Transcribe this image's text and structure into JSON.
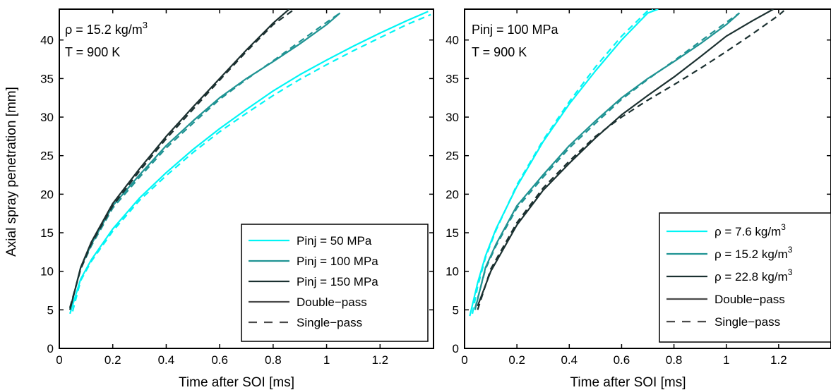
{
  "chart_data": [
    {
      "type": "line",
      "title": "",
      "xlabel": "Time after SOI [ms]",
      "ylabel": "Axial spray penetration [mm]",
      "xlim": [
        0,
        1.4
      ],
      "ylim": [
        0,
        44
      ],
      "xticks": [
        0,
        0.2,
        0.4,
        0.6,
        0.8,
        1,
        1.2
      ],
      "xtick_labels": [
        "0",
        "0.2",
        "0.4",
        "0.6",
        "0.8",
        "1",
        "1.2"
      ],
      "yticks": [
        0,
        5,
        10,
        15,
        20,
        25,
        30,
        35,
        40
      ],
      "ytick_labels": [
        "0",
        "5",
        "10",
        "15",
        "20",
        "25",
        "30",
        "35",
        "40"
      ],
      "annotation": [
        "ρ = 15.2 kg/m",
        "3",
        "T = 900 K"
      ],
      "legend_position": "bottom-right",
      "legend": [
        {
          "label": "Pinj = 50 MPa",
          "sup": "",
          "color": "#00f5f5",
          "dash": false
        },
        {
          "label": "Pinj = 100 MPa",
          "sup": "",
          "color": "#1f9393",
          "dash": false
        },
        {
          "label": "Pinj = 150 MPa",
          "sup": "",
          "color": "#1b3030",
          "dash": false
        },
        {
          "label": "Double−pass",
          "sup": "",
          "color": "#4a4a4a",
          "dash": false
        },
        {
          "label": "Single−pass",
          "sup": "",
          "color": "#4a4a4a",
          "dash": true
        }
      ],
      "series": [
        {
          "group": "Pinj = 50 MPa",
          "method": "Double-pass",
          "color": "#00f5f5",
          "dash": false,
          "x": [
            0.04,
            0.08,
            0.12,
            0.2,
            0.3,
            0.4,
            0.5,
            0.6,
            0.7,
            0.8,
            0.9,
            1.0,
            1.1,
            1.2,
            1.3,
            1.38
          ],
          "y": [
            4.5,
            9.0,
            11.5,
            15.5,
            19.5,
            22.8,
            25.8,
            28.5,
            31.0,
            33.4,
            35.5,
            37.4,
            39.2,
            40.9,
            42.5,
            43.7
          ]
        },
        {
          "group": "Pinj = 50 MPa",
          "method": "Single-pass",
          "color": "#00f5f5",
          "dash": true,
          "x": [
            0.05,
            0.08,
            0.12,
            0.2,
            0.3,
            0.4,
            0.5,
            0.6,
            0.7,
            0.8,
            0.9,
            1.0,
            1.1,
            1.2,
            1.3,
            1.39
          ],
          "y": [
            4.8,
            8.8,
            11.3,
            15.2,
            19.2,
            22.4,
            25.4,
            28.1,
            30.5,
            32.8,
            34.9,
            36.8,
            38.6,
            40.3,
            42.0,
            43.3
          ]
        },
        {
          "group": "Pinj = 100 MPa",
          "method": "Double-pass",
          "color": "#1f9393",
          "dash": false,
          "x": [
            0.04,
            0.08,
            0.12,
            0.2,
            0.3,
            0.4,
            0.5,
            0.6,
            0.7,
            0.8,
            0.9,
            1.0,
            1.05
          ],
          "y": [
            5.0,
            10.5,
            13.5,
            18.5,
            22.5,
            26.3,
            29.5,
            32.5,
            35.0,
            37.2,
            39.5,
            42.0,
            43.5
          ]
        },
        {
          "group": "Pinj = 100 MPa",
          "method": "Single-pass",
          "color": "#1f9393",
          "dash": true,
          "x": [
            0.04,
            0.08,
            0.12,
            0.2,
            0.3,
            0.4,
            0.5,
            0.6,
            0.7,
            0.8,
            0.9,
            1.0,
            1.05
          ],
          "y": [
            5.2,
            10.3,
            13.3,
            18.2,
            22.2,
            26.0,
            29.2,
            32.3,
            34.9,
            37.3,
            39.8,
            42.3,
            43.5
          ]
        },
        {
          "group": "Pinj = 150 MPa",
          "method": "Double-pass",
          "color": "#1b3030",
          "dash": false,
          "x": [
            0.04,
            0.08,
            0.12,
            0.2,
            0.3,
            0.4,
            0.5,
            0.6,
            0.7,
            0.8,
            0.86
          ],
          "y": [
            5.0,
            10.5,
            13.8,
            18.8,
            23.3,
            27.5,
            31.3,
            35.0,
            38.7,
            42.2,
            44.0
          ]
        },
        {
          "group": "Pinj = 150 MPa",
          "method": "Single-pass",
          "color": "#1b3030",
          "dash": true,
          "x": [
            0.04,
            0.08,
            0.12,
            0.2,
            0.3,
            0.4,
            0.5,
            0.6,
            0.7,
            0.8,
            0.88
          ],
          "y": [
            5.3,
            10.3,
            13.6,
            18.5,
            23.0,
            27.2,
            31.0,
            34.8,
            38.5,
            42.0,
            44.0
          ]
        }
      ]
    },
    {
      "type": "line",
      "title": "",
      "xlabel": "Time after SOI [ms]",
      "ylabel": "",
      "xlim": [
        0,
        1.4
      ],
      "ylim": [
        0,
        44
      ],
      "xticks": [
        0,
        0.2,
        0.4,
        0.6,
        0.8,
        1,
        1.2
      ],
      "xtick_labels": [
        "0",
        "0.2",
        "0.4",
        "0.6",
        "0.8",
        "1",
        "1.2"
      ],
      "yticks": [
        0,
        5,
        10,
        15,
        20,
        25,
        30,
        35,
        40
      ],
      "ytick_labels": [
        "0",
        "5",
        "10",
        "15",
        "20",
        "25",
        "30",
        "35",
        "40"
      ],
      "annotation": [
        "Pinj = 100 MPa",
        "",
        "T = 900 K"
      ],
      "legend_position": "bottom-right",
      "legend": [
        {
          "label": "ρ = 7.6 kg/m",
          "sup": "3",
          "color": "#00f5f5",
          "dash": false
        },
        {
          "label": "ρ = 15.2 kg/m",
          "sup": "3",
          "color": "#1f9393",
          "dash": false
        },
        {
          "label": "ρ = 22.8 kg/m",
          "sup": "3",
          "color": "#1b3030",
          "dash": false
        },
        {
          "label": "Double−pass",
          "sup": "",
          "color": "#4a4a4a",
          "dash": false
        },
        {
          "label": "Single−pass",
          "sup": "",
          "color": "#4a4a4a",
          "dash": true
        }
      ],
      "series": [
        {
          "group": "ρ = 7.6 kg/m3",
          "method": "Double-pass",
          "color": "#00f5f5",
          "dash": false,
          "x": [
            0.02,
            0.05,
            0.08,
            0.12,
            0.2,
            0.3,
            0.4,
            0.5,
            0.6,
            0.7,
            0.74
          ],
          "y": [
            4.2,
            8.5,
            12.0,
            15.5,
            21.0,
            26.8,
            31.7,
            36.0,
            40.0,
            43.5,
            44.0
          ]
        },
        {
          "group": "ρ = 7.6 kg/m3",
          "method": "Single-pass",
          "color": "#00f5f5",
          "dash": true,
          "x": [
            0.03,
            0.05,
            0.08,
            0.12,
            0.2,
            0.3,
            0.4,
            0.5,
            0.6,
            0.7,
            0.72
          ],
          "y": [
            4.5,
            8.0,
            11.8,
            15.3,
            21.2,
            27.0,
            32.0,
            36.5,
            40.5,
            43.8,
            44.0
          ]
        },
        {
          "group": "ρ = 15.2 kg/m3",
          "method": "Double-pass",
          "color": "#1f9393",
          "dash": false,
          "x": [
            0.04,
            0.08,
            0.12,
            0.2,
            0.3,
            0.4,
            0.5,
            0.6,
            0.7,
            0.8,
            0.9,
            1.0,
            1.05
          ],
          "y": [
            5.0,
            10.5,
            13.5,
            18.5,
            22.5,
            26.3,
            29.5,
            32.5,
            35.0,
            37.2,
            39.5,
            42.0,
            43.5
          ]
        },
        {
          "group": "ρ = 15.2 kg/m3",
          "method": "Single-pass",
          "color": "#1f9393",
          "dash": true,
          "x": [
            0.04,
            0.08,
            0.12,
            0.2,
            0.3,
            0.4,
            0.5,
            0.6,
            0.7,
            0.8,
            0.9,
            1.0,
            1.05
          ],
          "y": [
            5.2,
            10.3,
            13.3,
            18.2,
            22.2,
            26.0,
            29.2,
            32.3,
            34.9,
            37.3,
            39.8,
            42.3,
            43.5
          ]
        },
        {
          "group": "ρ = 22.8 kg/m3",
          "method": "Double-pass",
          "color": "#1b3030",
          "dash": false,
          "x": [
            0.05,
            0.1,
            0.15,
            0.2,
            0.3,
            0.4,
            0.5,
            0.6,
            0.7,
            0.8,
            0.9,
            1.0,
            1.1,
            1.18
          ],
          "y": [
            5.5,
            10.0,
            13.0,
            16.0,
            20.5,
            24.0,
            27.3,
            30.3,
            32.8,
            35.2,
            37.8,
            40.5,
            42.5,
            44.0
          ]
        },
        {
          "group": "ρ = 22.8 kg/m3",
          "method": "Single-pass",
          "color": "#1b3030",
          "dash": true,
          "x": [
            0.05,
            0.1,
            0.15,
            0.2,
            0.3,
            0.4,
            0.5,
            0.6,
            0.7,
            0.8,
            0.9,
            1.0,
            1.1,
            1.2,
            1.22
          ],
          "y": [
            5.0,
            10.3,
            13.3,
            16.3,
            20.8,
            24.3,
            27.5,
            30.0,
            32.2,
            34.2,
            36.3,
            38.5,
            40.8,
            43.2,
            43.8
          ]
        }
      ]
    }
  ]
}
